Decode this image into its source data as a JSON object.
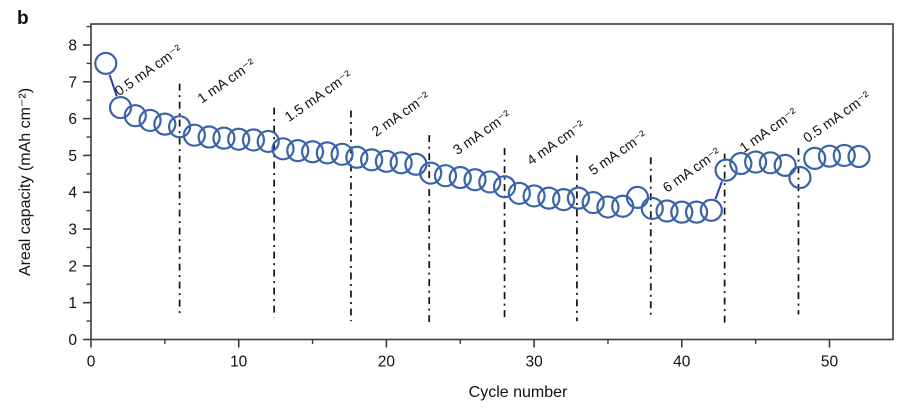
{
  "panel_label": "b",
  "chart_data": {
    "type": "scatter",
    "title": "",
    "xlabel": "Cycle number",
    "ylabel": "Areal capacity (mAh cm⁻²)",
    "xlim": [
      0,
      54.3
    ],
    "ylim": [
      0,
      8.57
    ],
    "grid": false,
    "frame": true,
    "x_major_ticks": [
      0,
      10,
      20,
      30,
      40,
      50
    ],
    "x_minor_ticks": [
      5,
      15,
      25,
      35,
      45
    ],
    "y_major_ticks": [
      0,
      1,
      2,
      3,
      4,
      5,
      6,
      7,
      8
    ],
    "y_minor_ticks": [
      0.5,
      1.5,
      2.5,
      3.5,
      4.5,
      5.5,
      6.5,
      7.5,
      8.5
    ],
    "marker_color": "#3a63a8",
    "connector_color": "#2e3cb3",
    "divider_color": "#111111",
    "axis_color": "#3c3c3c",
    "segments": [
      {
        "rate_label": "0.5 mA cm⁻²",
        "cycles": [
          1,
          2,
          3,
          4,
          5,
          6
        ],
        "values": [
          7.5,
          6.3,
          6.08,
          5.95,
          5.85,
          5.78
        ],
        "label_anchor": {
          "x": 1.9,
          "y": 6.6
        }
      },
      {
        "rate_label": "1 mA cm⁻²",
        "cycles": [
          7,
          8,
          9,
          10,
          11,
          12
        ],
        "values": [
          5.55,
          5.5,
          5.47,
          5.44,
          5.42,
          5.38
        ],
        "label_anchor": {
          "x": 7.5,
          "y": 6.4
        }
      },
      {
        "rate_label": "1.5 mA cm⁻²",
        "cycles": [
          13,
          14,
          15,
          16,
          17
        ],
        "values": [
          5.18,
          5.13,
          5.1,
          5.07,
          5.03
        ],
        "label_anchor": {
          "x": 13.4,
          "y": 5.9
        }
      },
      {
        "rate_label": "2 mA cm⁻²",
        "cycles": [
          18,
          19,
          20,
          21,
          22
        ],
        "values": [
          4.95,
          4.88,
          4.84,
          4.8,
          4.76
        ],
        "label_anchor": {
          "x": 19.3,
          "y": 5.5
        }
      },
      {
        "rate_label": "3 mA cm⁻²",
        "cycles": [
          23,
          24,
          25,
          26,
          27
        ],
        "values": [
          4.52,
          4.45,
          4.4,
          4.34,
          4.28
        ],
        "label_anchor": {
          "x": 24.8,
          "y": 5.0
        }
      },
      {
        "rate_label": "4 mA cm⁻²",
        "cycles": [
          28,
          29,
          30,
          31,
          32
        ],
        "values": [
          4.15,
          3.97,
          3.9,
          3.84,
          3.8
        ],
        "label_anchor": {
          "x": 29.8,
          "y": 4.72
        }
      },
      {
        "rate_label": "5 mA cm⁻²",
        "cycles": [
          33,
          34,
          35,
          36,
          37
        ],
        "values": [
          3.84,
          3.72,
          3.6,
          3.62,
          3.86
        ],
        "label_anchor": {
          "x": 34.0,
          "y": 4.45
        }
      },
      {
        "rate_label": "6 mA cm⁻²",
        "cycles": [
          38,
          39,
          40,
          41,
          42
        ],
        "values": [
          3.56,
          3.49,
          3.46,
          3.46,
          3.51
        ],
        "label_anchor": {
          "x": 39.0,
          "y": 3.98
        }
      },
      {
        "rate_label": "1 mA cm⁻²",
        "cycles": [
          43,
          44,
          45,
          46,
          47
        ],
        "values": [
          4.6,
          4.78,
          4.82,
          4.8,
          4.73
        ],
        "label_anchor": {
          "x": 44.2,
          "y": 5.06
        }
      },
      {
        "rate_label": "0.5 mA cm⁻²",
        "cycles": [
          48,
          49,
          50,
          51,
          52
        ],
        "values": [
          4.4,
          4.92,
          4.98,
          5.0,
          4.97
        ],
        "label_anchor": {
          "x": 48.5,
          "y": 5.33
        }
      }
    ],
    "dividers": [
      {
        "x": 6.0,
        "y_top": 6.95,
        "y_bottom": 0.68
      },
      {
        "x": 12.4,
        "y_top": 6.3,
        "y_bottom": 0.6
      },
      {
        "x": 17.6,
        "y_top": 6.22,
        "y_bottom": 0.5
      },
      {
        "x": 22.9,
        "y_top": 5.55,
        "y_bottom": 0.45
      },
      {
        "x": 28.0,
        "y_top": 5.2,
        "y_bottom": 0.6
      },
      {
        "x": 32.9,
        "y_top": 5.0,
        "y_bottom": 0.5
      },
      {
        "x": 37.9,
        "y_top": 4.95,
        "y_bottom": 0.55
      },
      {
        "x": 42.9,
        "y_top": 5.05,
        "y_bottom": 0.45
      },
      {
        "x": 47.9,
        "y_top": 5.2,
        "y_bottom": 0.68
      }
    ],
    "connectors": [
      {
        "x1": 1,
        "y1": 7.5,
        "x2": 2,
        "y2": 6.3
      },
      {
        "x1": 42,
        "y1": 3.51,
        "x2": 43,
        "y2": 4.6
      }
    ]
  }
}
